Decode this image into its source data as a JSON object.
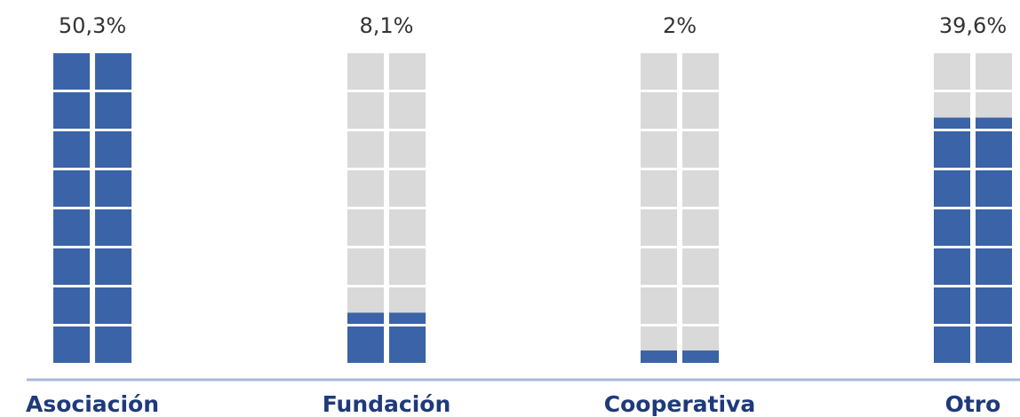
{
  "chart_data": {
    "type": "waffle-column",
    "categories": [
      "Asociación",
      "Fundación",
      "Cooperativa",
      "Otro"
    ],
    "values": [
      50.3,
      8.1,
      2,
      39.6
    ],
    "value_labels": [
      "50,3%",
      "8,1%",
      "2%",
      "39,6%"
    ],
    "ylim": [
      0,
      50
    ],
    "color": "#3a63a8",
    "empty_color": "#d9d9d9"
  }
}
